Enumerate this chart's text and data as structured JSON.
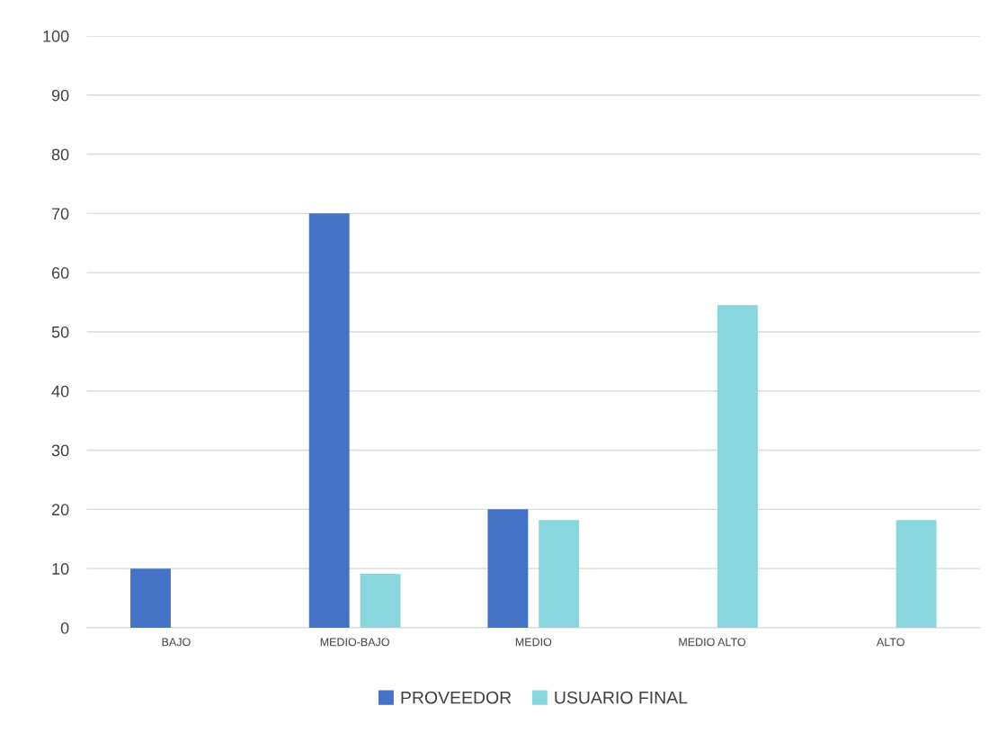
{
  "chart_data": {
    "type": "bar",
    "categories": [
      "BAJO",
      "MEDIO-BAJO",
      "MEDIO",
      "MEDIO ALTO",
      "ALTO"
    ],
    "series": [
      {
        "name": "PROVEEDOR",
        "color": "#4472c4",
        "values": [
          10,
          70,
          20,
          null,
          null
        ]
      },
      {
        "name": "USUARIO FINAL",
        "color": "#8ad6de",
        "values": [
          null,
          9.1,
          18.2,
          54.5,
          18.2
        ]
      }
    ],
    "ylim": [
      0,
      100
    ],
    "yticks": [
      0,
      10,
      20,
      30,
      40,
      50,
      60,
      70,
      80,
      90,
      100
    ],
    "grid": "y",
    "legend": "bottom"
  }
}
